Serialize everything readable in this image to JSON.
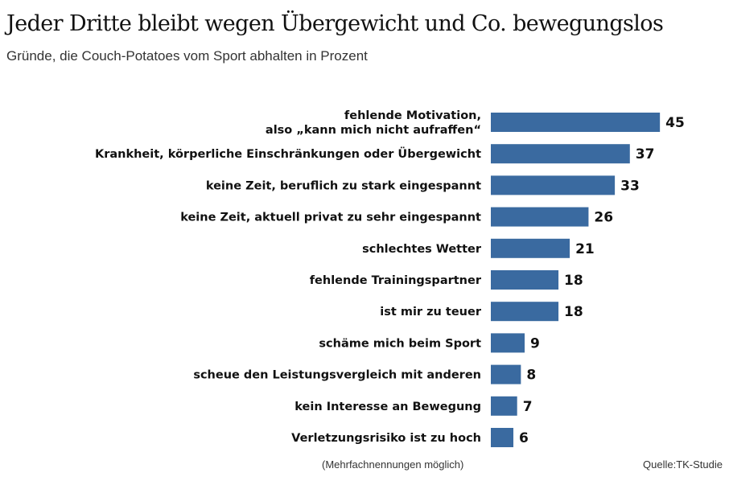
{
  "colors": {
    "bar": "#3a6aa0",
    "text": "#111111"
  },
  "chart_data": {
    "type": "bar",
    "orientation": "horizontal",
    "title": "Jeder Dritte bleibt wegen Übergewicht und Co. bewegungslos",
    "subtitle": "Gründe, die Couch-Potatoes vom Sport abhalten in Prozent",
    "categories": [
      [
        "fehlende Motivation,",
        "also „kann mich nicht aufraffen“"
      ],
      [
        "Krankheit, körperliche Einschränkungen oder Übergewicht"
      ],
      [
        "keine Zeit, beruflich zu stark eingespannt"
      ],
      [
        "keine Zeit, aktuell privat zu sehr eingespannt"
      ],
      [
        "schlechtes Wetter"
      ],
      [
        "fehlende Trainingspartner"
      ],
      [
        "ist mir zu teuer"
      ],
      [
        "schäme mich beim Sport"
      ],
      [
        "scheue den Leistungsvergleich mit anderen"
      ],
      [
        "kein Interesse an Bewegung"
      ],
      [
        "Verletzungsrisiko ist zu hoch"
      ]
    ],
    "values": [
      45,
      37,
      33,
      26,
      21,
      18,
      18,
      9,
      8,
      7,
      6
    ],
    "unit": "Prozent",
    "note": "(Mehrfachnennungen möglich)",
    "source": "Quelle:TK-Studie"
  }
}
